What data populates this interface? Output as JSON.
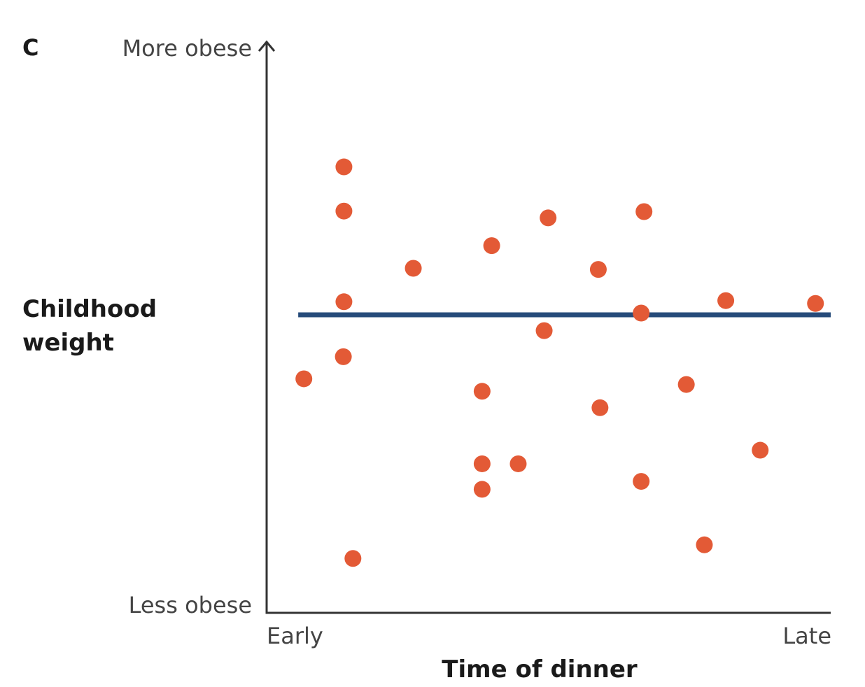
{
  "panel_label": "C",
  "colors": {
    "axis": "#333333",
    "point": "#e35a36",
    "trend_line": "#264b7a",
    "text": "#1a1a1a",
    "tick_text": "#444444"
  },
  "chart_data": {
    "type": "scatter",
    "xlabel": "Time of dinner",
    "ylabel": "Childhood weight",
    "x_tick_labels": {
      "min": "Early",
      "max": "Late"
    },
    "y_tick_labels": {
      "min": "Less obese",
      "max": "More obese"
    },
    "xlim": [
      0,
      100
    ],
    "ylim": [
      0,
      100
    ],
    "grid": false,
    "legend": "none",
    "points": [
      {
        "x": 6.6,
        "y": 41.3
      },
      {
        "x": 13.7,
        "y": 78.7
      },
      {
        "x": 13.7,
        "y": 70.9
      },
      {
        "x": 13.7,
        "y": 54.9
      },
      {
        "x": 13.6,
        "y": 45.2
      },
      {
        "x": 15.3,
        "y": 9.6
      },
      {
        "x": 26.0,
        "y": 60.8
      },
      {
        "x": 38.2,
        "y": 26.3
      },
      {
        "x": 38.2,
        "y": 21.8
      },
      {
        "x": 38.2,
        "y": 39.1
      },
      {
        "x": 39.9,
        "y": 64.8
      },
      {
        "x": 44.6,
        "y": 26.3
      },
      {
        "x": 49.2,
        "y": 49.8
      },
      {
        "x": 49.9,
        "y": 69.7
      },
      {
        "x": 58.8,
        "y": 60.6
      },
      {
        "x": 59.1,
        "y": 36.2
      },
      {
        "x": 66.9,
        "y": 70.8
      },
      {
        "x": 66.4,
        "y": 52.9
      },
      {
        "x": 66.4,
        "y": 23.2
      },
      {
        "x": 74.4,
        "y": 40.3
      },
      {
        "x": 77.6,
        "y": 12.0
      },
      {
        "x": 81.4,
        "y": 55.1
      },
      {
        "x": 87.5,
        "y": 28.7
      },
      {
        "x": 97.3,
        "y": 54.6
      }
    ],
    "trend_line": {
      "x": [
        5.6,
        100
      ],
      "y": [
        52.6,
        52.6
      ]
    }
  }
}
